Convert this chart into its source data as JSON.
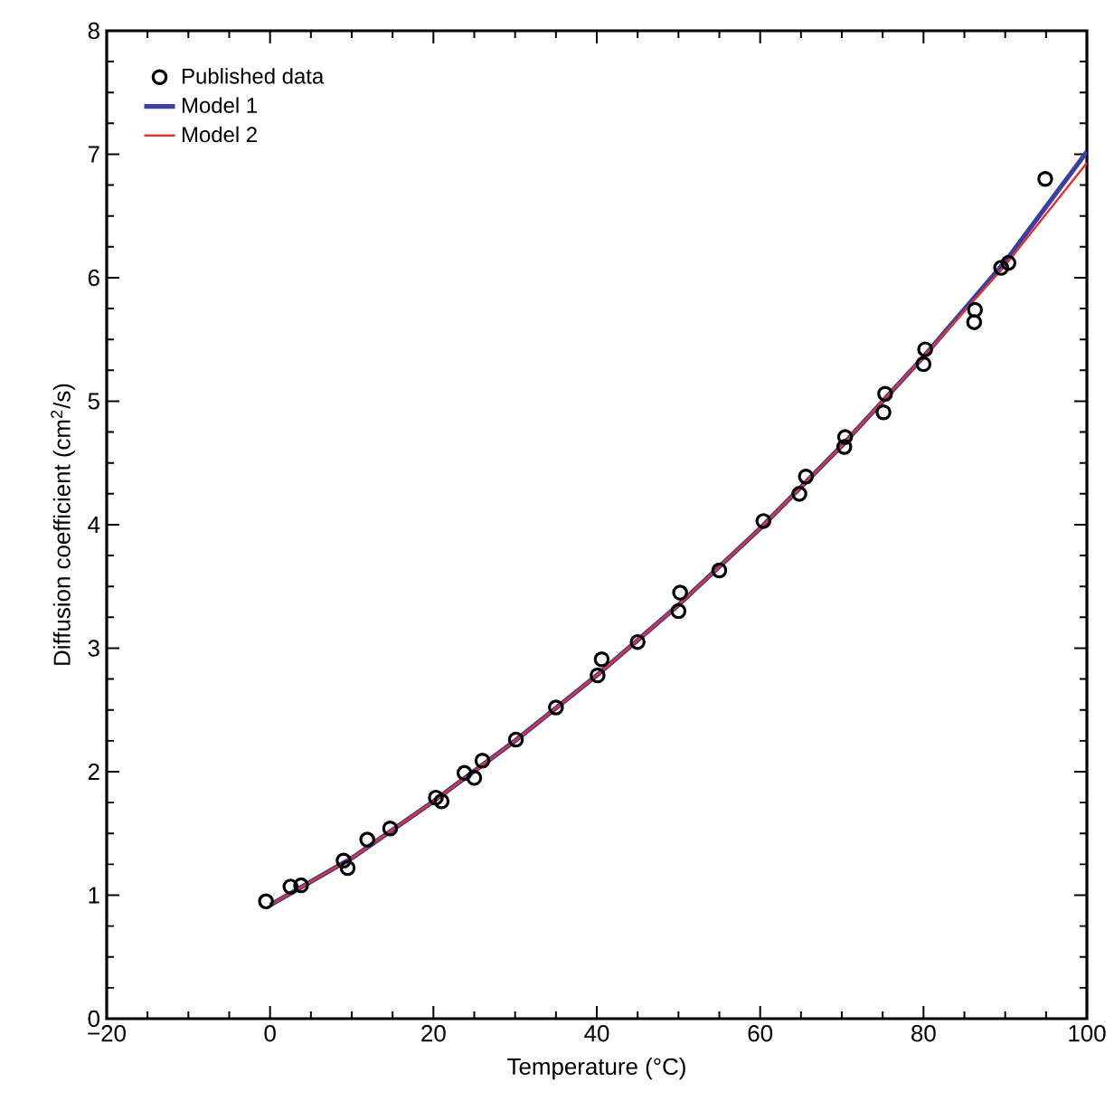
{
  "chart_data": {
    "type": "scatter",
    "xlabel": "Temperature (°C)",
    "ylabel": "Diffusion coefficient (cm$^{2}$/s)",
    "xlim": [
      -20,
      100
    ],
    "ylim": [
      0,
      8
    ],
    "xticks": [
      {
        "value": -20,
        "label": "−20"
      },
      0,
      20,
      40,
      60,
      80,
      100
    ],
    "yticks": [
      0,
      1,
      2,
      3,
      4,
      5,
      6,
      7,
      8
    ],
    "grid": false,
    "legend": "top left",
    "series": [
      {
        "name": "Published data",
        "type": "scatter",
        "marker": "circle",
        "color": "#000000",
        "x": [
          -0.5,
          2.5,
          3.8,
          9.0,
          9.5,
          11.9,
          14.7,
          20.3,
          21,
          23.8,
          25,
          26,
          30.1,
          35,
          40.1,
          40.6,
          45,
          50,
          50.2,
          55,
          60.4,
          64.8,
          65.6,
          70.3,
          70.4,
          75.1,
          75.3,
          80,
          80.2,
          86.2,
          86.3,
          89.5,
          90.4,
          94.9
        ],
        "values": [
          0.95,
          1.07,
          1.08,
          1.28,
          1.22,
          1.45,
          1.54,
          1.79,
          1.76,
          1.99,
          1.95,
          2.09,
          2.26,
          2.52,
          2.78,
          2.91,
          3.05,
          3.3,
          3.45,
          3.63,
          4.03,
          4.25,
          4.39,
          4.63,
          4.71,
          4.91,
          5.06,
          5.3,
          5.42,
          5.64,
          5.74,
          6.08,
          6.12,
          6.8
        ]
      },
      {
        "name": "Model 1",
        "type": "line",
        "marker": "none",
        "line_style": "solid",
        "color": "#3a3fa0",
        "x": [
          0,
          10,
          20,
          30,
          40,
          50,
          60,
          70,
          80,
          90,
          100
        ],
        "values": [
          0.92,
          1.3,
          1.76,
          2.25,
          2.78,
          3.35,
          3.97,
          4.64,
          5.36,
          6.13,
          7.02
        ]
      },
      {
        "name": "Model 2",
        "type": "line",
        "marker": "none",
        "line_style": "solid",
        "color": "#e8312f",
        "x": [
          0,
          10,
          20,
          30,
          40,
          50,
          60,
          70,
          80,
          90,
          100
        ],
        "values": [
          0.92,
          1.3,
          1.76,
          2.25,
          2.78,
          3.35,
          3.97,
          4.64,
          5.36,
          6.1,
          6.93
        ]
      }
    ]
  }
}
